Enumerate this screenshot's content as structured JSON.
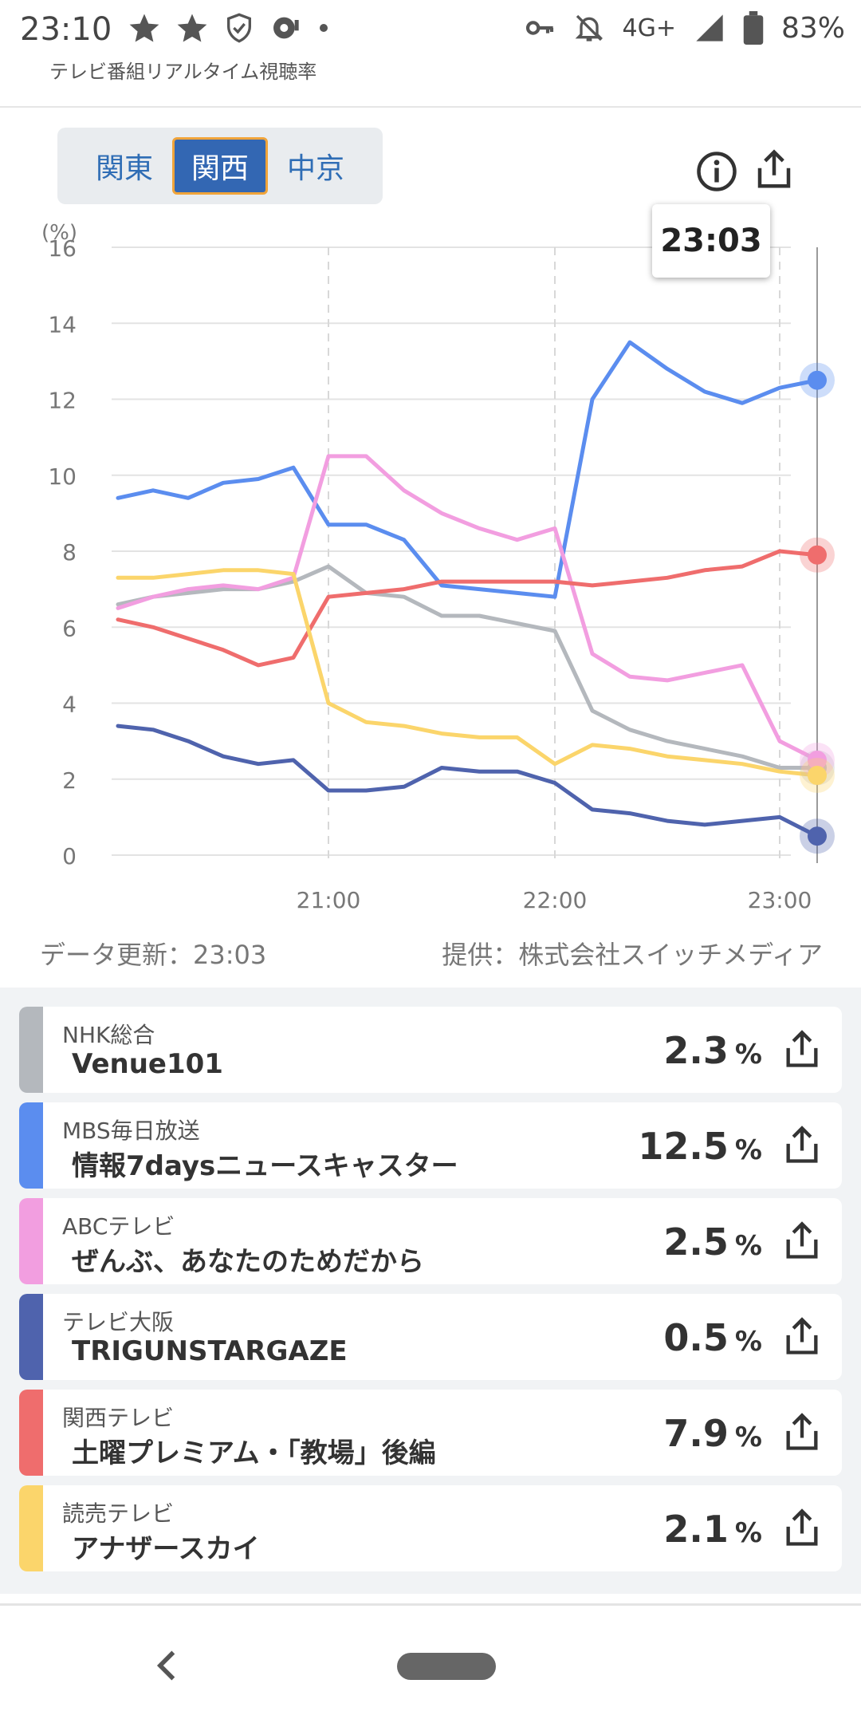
{
  "status_bar": {
    "time": "23:10",
    "network": "4G+",
    "battery": "83%"
  },
  "app": {
    "title": "テレビ番組リアルタイム視聴率"
  },
  "regions": {
    "tabs": [
      "関東",
      "関西",
      "中京"
    ],
    "selected": "関西"
  },
  "tooltip_time": "23:03",
  "update_text": "データ更新：23:03",
  "provider_text": "提供：株式会社スイッチメディア",
  "chart_data": {
    "type": "line",
    "ylabel": "(%)",
    "ylim": [
      0,
      16
    ],
    "yticks": [
      "0",
      "2",
      "4",
      "6",
      "8",
      "10",
      "12",
      "14",
      "16"
    ],
    "xticks": [
      "21:00",
      "22:00",
      "23:00"
    ],
    "grid": true,
    "x": [
      "20:00",
      "20:10",
      "20:20",
      "20:30",
      "20:40",
      "20:50",
      "21:00",
      "21:10",
      "21:20",
      "21:30",
      "21:40",
      "21:50",
      "22:00",
      "22:10",
      "22:20",
      "22:30",
      "22:40",
      "22:50",
      "23:00",
      "23:03"
    ],
    "series": [
      {
        "name": "NHK総合",
        "color": "#b4b8bd",
        "values": [
          6.6,
          6.8,
          6.9,
          7.0,
          7.0,
          7.2,
          7.6,
          6.9,
          6.8,
          6.3,
          6.3,
          6.1,
          5.9,
          3.8,
          3.3,
          3.0,
          2.8,
          2.6,
          2.3,
          2.3
        ]
      },
      {
        "name": "MBS毎日放送",
        "color": "#5b8def",
        "values": [
          9.4,
          9.6,
          9.4,
          9.8,
          9.9,
          10.2,
          8.7,
          8.7,
          8.3,
          7.1,
          7.0,
          6.9,
          6.8,
          12.0,
          13.5,
          12.8,
          12.2,
          11.9,
          12.3,
          12.5
        ]
      },
      {
        "name": "ABCテレビ",
        "color": "#f29ee0",
        "values": [
          6.5,
          6.8,
          7.0,
          7.1,
          7.0,
          7.3,
          10.5,
          10.5,
          9.6,
          9.0,
          8.6,
          8.3,
          8.6,
          5.3,
          4.7,
          4.6,
          4.8,
          5.0,
          3.0,
          2.5
        ]
      },
      {
        "name": "テレビ大阪",
        "color": "#4f63ad",
        "values": [
          3.4,
          3.3,
          3.0,
          2.6,
          2.4,
          2.5,
          1.7,
          1.7,
          1.8,
          2.3,
          2.2,
          2.2,
          1.9,
          1.2,
          1.1,
          0.9,
          0.8,
          0.9,
          1.0,
          0.5
        ]
      },
      {
        "name": "関西テレビ",
        "color": "#ef6d6d",
        "values": [
          6.2,
          6.0,
          5.7,
          5.4,
          5.0,
          5.2,
          6.8,
          6.9,
          7.0,
          7.2,
          7.2,
          7.2,
          7.2,
          7.1,
          7.2,
          7.3,
          7.5,
          7.6,
          8.0,
          7.9
        ]
      },
      {
        "name": "読売テレビ",
        "color": "#fbd56b",
        "values": [
          7.3,
          7.3,
          7.4,
          7.5,
          7.5,
          7.4,
          4.0,
          3.5,
          3.4,
          3.2,
          3.1,
          3.1,
          2.4,
          2.9,
          2.8,
          2.6,
          2.5,
          2.4,
          2.2,
          2.1
        ]
      }
    ]
  },
  "channels": [
    {
      "station": "NHK総合",
      "program": "Venue101",
      "rating": "2.3",
      "unit": "%",
      "color": "#b4b8bd"
    },
    {
      "station": "MBS毎日放送",
      "program": "情報7daysニュースキャスター",
      "rating": "12.5",
      "unit": "%",
      "color": "#5b8def"
    },
    {
      "station": "ABCテレビ",
      "program": "ぜんぶ、あなたのためだから",
      "rating": "2.5",
      "unit": "%",
      "color": "#f29ee0"
    },
    {
      "station": "テレビ大阪",
      "program": "TRIGUNSTARGAZE",
      "rating": "0.5",
      "unit": "%",
      "color": "#4f63ad"
    },
    {
      "station": "関西テレビ",
      "program": "土曜プレミアム・「教場」後編",
      "rating": "7.9",
      "unit": "%",
      "color": "#ef6d6d"
    },
    {
      "station": "読売テレビ",
      "program": "アナザースカイ",
      "rating": "2.1",
      "unit": "%",
      "color": "#fbd56b"
    }
  ]
}
